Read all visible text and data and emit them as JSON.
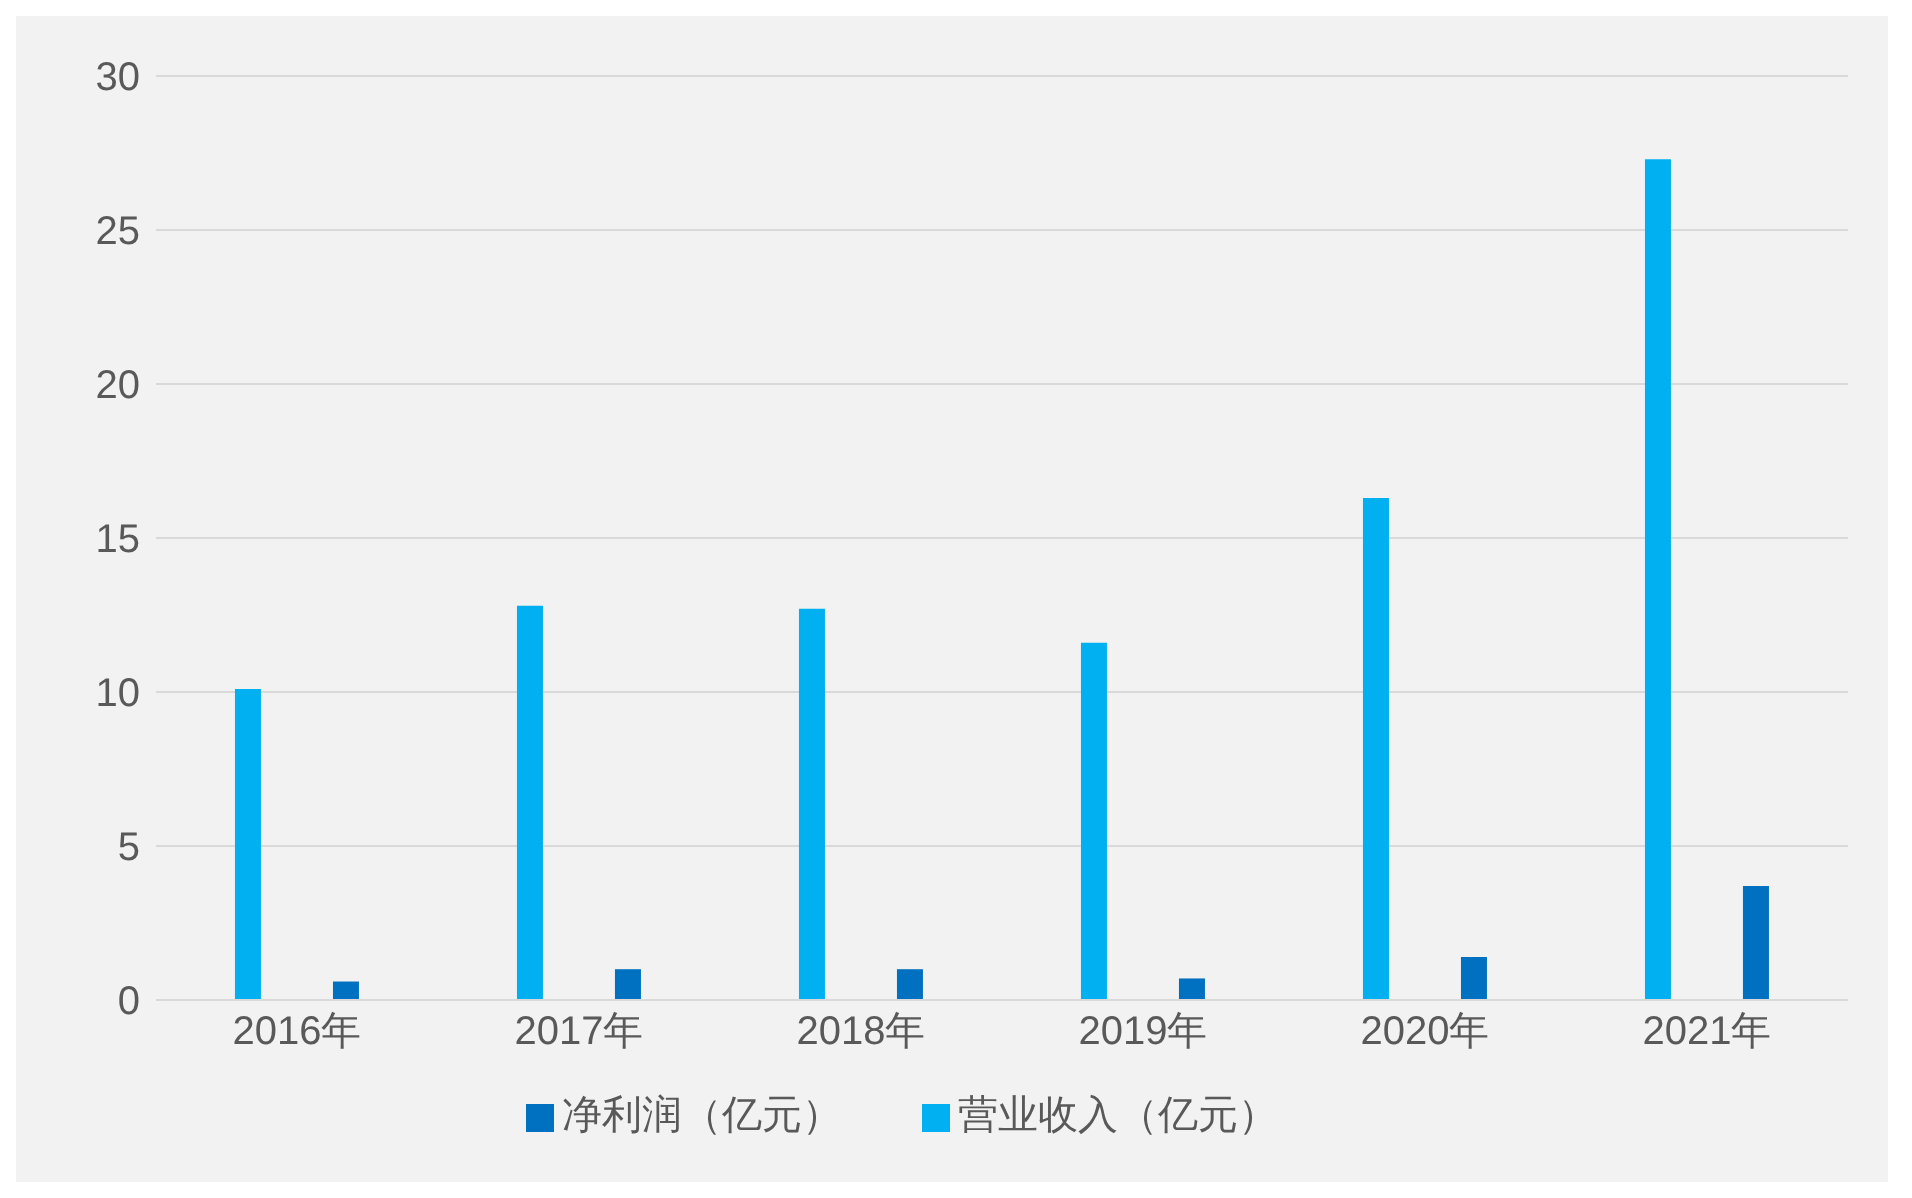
{
  "chart_data": {
    "type": "bar",
    "categories": [
      "2016年",
      "2017年",
      "2018年",
      "2019年",
      "2020年",
      "2021年"
    ],
    "series": [
      {
        "name": "营业收入（亿元）",
        "color": "#00b0f0",
        "values": [
          10.1,
          12.8,
          12.7,
          11.6,
          16.3,
          27.3
        ]
      },
      {
        "name": "净利润（亿元）",
        "color": "#0070c0",
        "values": [
          0.6,
          1.0,
          1.0,
          0.7,
          1.4,
          3.7
        ]
      }
    ],
    "ylim": [
      0,
      30
    ],
    "yticks": [
      0,
      5,
      10,
      15,
      20,
      25,
      30
    ],
    "grid": "y",
    "legend": "bottom"
  }
}
